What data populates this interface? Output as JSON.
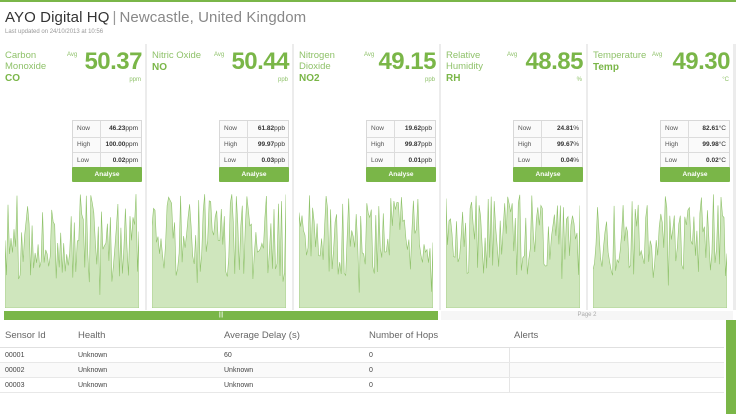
{
  "header": {
    "brand": "AYO Digital HQ",
    "separator": "|",
    "location": "Newcastle, United Kingdom",
    "updated": "Last updated on 24/10/2013 at 10:56"
  },
  "colors": {
    "accent": "#7ab648",
    "fill": "#cfe6bd",
    "line": "#8fc26a"
  },
  "panels": [
    {
      "name": "Carbon Monoxide",
      "code": "CO",
      "avg_label": "Avg",
      "value": "50.37",
      "unit": "ppm",
      "now_label": "Now",
      "now": "46.23",
      "high_label": "High",
      "high": "100.00",
      "low_label": "Low",
      "low": "0.02",
      "stat_unit": "ppm",
      "button": "Analyse"
    },
    {
      "name": "Nitric Oxide",
      "code": "NO",
      "avg_label": "Avg",
      "value": "50.44",
      "unit": "ppb",
      "now_label": "Now",
      "now": "61.82",
      "high_label": "High",
      "high": "99.97",
      "low_label": "Low",
      "low": "0.03",
      "stat_unit": "ppb",
      "button": "Analyse"
    },
    {
      "name": "Nitrogen Dioxide",
      "code": "NO2",
      "avg_label": "Avg",
      "value": "49.15",
      "unit": "ppb",
      "now_label": "Now",
      "now": "19.62",
      "high_label": "High",
      "high": "99.87",
      "low_label": "Low",
      "low": "0.01",
      "stat_unit": "ppb",
      "button": "Analyse"
    },
    {
      "name": "Relative Humidity",
      "code": "RH",
      "avg_label": "Avg",
      "value": "48.85",
      "unit": "%",
      "now_label": "Now",
      "now": "24.81",
      "high_label": "High",
      "high": "99.67",
      "low_label": "Low",
      "low": "0.04",
      "stat_unit": "%",
      "button": "Analyse"
    },
    {
      "name": "Temperature",
      "code": "Temp",
      "avg_label": "Avg",
      "value": "49.30",
      "unit": "°C",
      "now_label": "Now",
      "now": "82.61",
      "high_label": "High",
      "high": "99.98",
      "low_label": "Low",
      "low": "0.02",
      "stat_unit": "°C",
      "button": "Analyse"
    }
  ],
  "pager": {
    "page1": "|||",
    "page2": "Page 2"
  },
  "table": {
    "headers": [
      "Sensor Id",
      "Health",
      "Average Delay (s)",
      "Number of Hops",
      "Alerts"
    ],
    "rows": [
      [
        "00001",
        "Unknown",
        "60",
        "0",
        ""
      ],
      [
        "00002",
        "Unknown",
        "Unknown",
        "0",
        ""
      ],
      [
        "00003",
        "Unknown",
        "Unknown",
        "0",
        ""
      ]
    ]
  }
}
